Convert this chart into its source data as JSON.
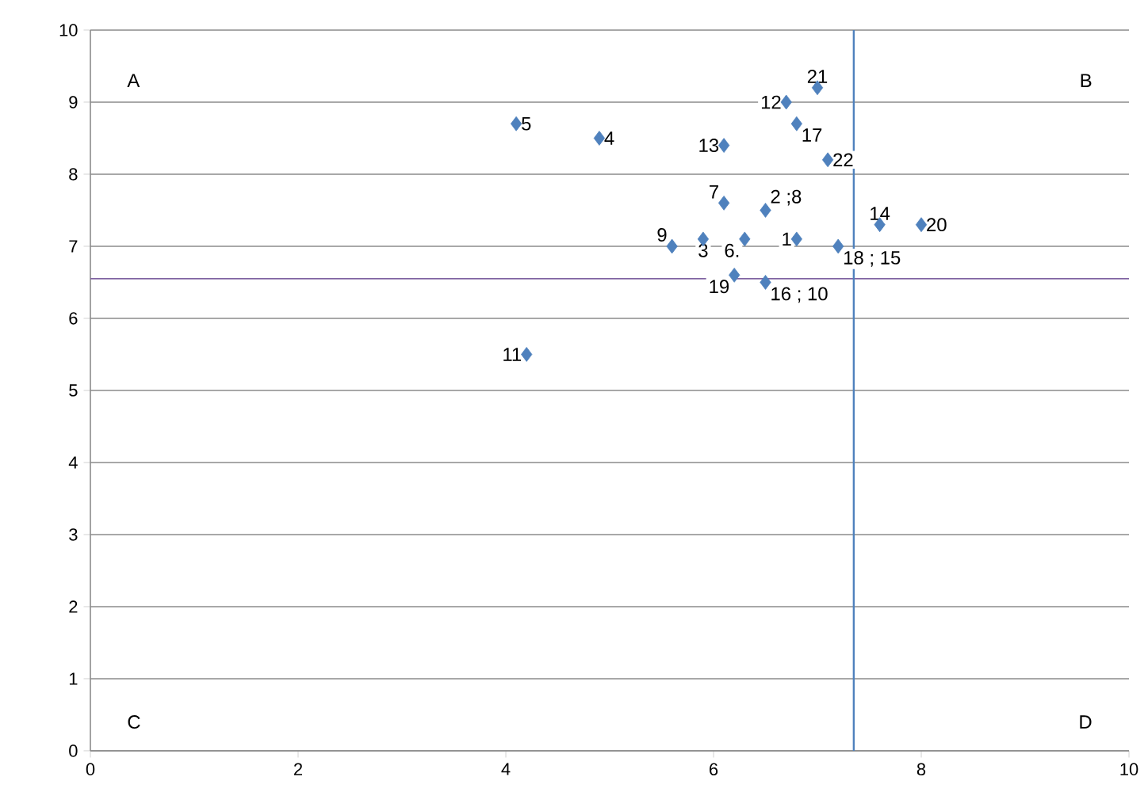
{
  "chart_data": {
    "type": "scatter",
    "marker": "diamond",
    "color": "#4f81bd",
    "x": [
      6.8,
      6.5,
      5.9,
      4.9,
      4.1,
      6.3,
      6.1,
      5.6,
      4.2,
      6.7,
      6.1,
      7.6,
      6.5,
      6.8,
      7.2,
      6.2,
      8.0,
      7.0,
      7.1
    ],
    "values": [
      7.1,
      7.5,
      7.1,
      8.5,
      8.7,
      7.1,
      7.6,
      7.0,
      5.5,
      9.0,
      8.4,
      7.3,
      6.5,
      8.7,
      7.0,
      6.6,
      7.3,
      9.2,
      8.2
    ],
    "xlim": [
      0,
      10
    ],
    "ylim": [
      0,
      10
    ],
    "xticks": [
      0,
      2,
      4,
      6,
      8,
      10
    ],
    "yticks": [
      0,
      1,
      2,
      3,
      4,
      5,
      6,
      7,
      8,
      9,
      10
    ],
    "grid": "y",
    "ref_lines": [
      {
        "axis": "y",
        "value": 6.55,
        "color": "#8064a2"
      },
      {
        "axis": "x",
        "value": 7.35,
        "color": "#4f81bd"
      }
    ],
    "annotations": [
      "A",
      "B",
      "C",
      "D",
      {
        "text": "1",
        "x": 6.8,
        "y": 7.1
      },
      {
        "text": "2 ;8",
        "x": 6.5,
        "y": 7.5
      },
      {
        "text": "3",
        "x": 5.9,
        "y": 7.1
      },
      {
        "text": "4",
        "x": 4.9,
        "y": 8.5
      },
      {
        "text": "5",
        "x": 4.1,
        "y": 8.7
      },
      {
        "text": "6.",
        "x": 6.3,
        "y": 7.1
      },
      {
        "text": "7",
        "x": 6.1,
        "y": 7.6
      },
      {
        "text": "9",
        "x": 5.6,
        "y": 7.0
      },
      {
        "text": "11",
        "x": 4.2,
        "y": 5.5
      },
      {
        "text": "12",
        "x": 6.7,
        "y": 9.0
      },
      {
        "text": "13",
        "x": 6.1,
        "y": 8.4
      },
      {
        "text": "14",
        "x": 7.6,
        "y": 7.3
      },
      {
        "text": "16 ; 10",
        "x": 6.5,
        "y": 6.5
      },
      {
        "text": "17",
        "x": 6.8,
        "y": 8.7
      },
      {
        "text": "18 ; 15",
        "x": 7.2,
        "y": 7.0
      },
      {
        "text": "19",
        "x": 6.2,
        "y": 6.6
      },
      {
        "text": "20",
        "x": 8.0,
        "y": 7.3
      },
      {
        "text": "21",
        "x": 7.0,
        "y": 9.2
      },
      {
        "text": "22",
        "x": 7.1,
        "y": 8.2
      }
    ]
  }
}
